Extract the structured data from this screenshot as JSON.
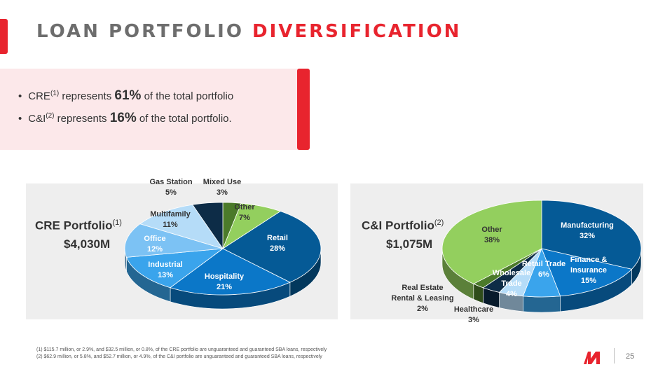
{
  "title": {
    "part1": "LOAN PORTFOLIO ",
    "part2": "DIVERSIFICATION"
  },
  "bullets": [
    {
      "a": "CRE",
      "sup": "(1)",
      "b": " represents ",
      "pct": "61%",
      "c": " of the total portfolio"
    },
    {
      "a": "C&I",
      "sup": "(2)",
      "b": " represents ",
      "pct": "16%",
      "c": " of the total portfolio."
    }
  ],
  "chart_data": [
    {
      "type": "pie",
      "title": "CRE Portfolio",
      "title_sup": "(1)",
      "total": "$4,030M",
      "slices": [
        {
          "name": "Mixed Use",
          "value": 3,
          "color": "#4b7a2a"
        },
        {
          "name": "Other",
          "value": 7,
          "color": "#93cf5e"
        },
        {
          "name": "Retail",
          "value": 28,
          "color": "#055a96"
        },
        {
          "name": "Hospitality",
          "value": 21,
          "color": "#0b77c8"
        },
        {
          "name": "Industrial",
          "value": 13,
          "color": "#3aa4ec"
        },
        {
          "name": "Office",
          "value": 12,
          "color": "#7cc2f4"
        },
        {
          "name": "Multifamily",
          "value": 11,
          "color": "#b5dcf8"
        },
        {
          "name": "Gas Station",
          "value": 5,
          "color": "#0d2c47"
        }
      ]
    },
    {
      "type": "pie",
      "title": "C&I Portfolio",
      "title_sup": "(2)",
      "total": "$1,075M",
      "slices": [
        {
          "name": "Manufacturing",
          "value": 32,
          "color": "#055a96"
        },
        {
          "name": "Finance & Insurance",
          "value": 15,
          "color": "#0b77c8"
        },
        {
          "name": "Retail Trade",
          "value": 6,
          "color": "#3aa4ec"
        },
        {
          "name": "Wholesale Trade",
          "value": 4,
          "color": "#b5dcf8"
        },
        {
          "name": "Healthcare",
          "value": 3,
          "color": "#0d2c47"
        },
        {
          "name": "Real Estate Rental & Leasing",
          "value": 2,
          "color": "#4b7a2a"
        },
        {
          "name": "Other",
          "value": 38,
          "color": "#93cf5e"
        }
      ]
    }
  ],
  "footnotes": [
    "(1)    $115.7 million, or 2.9%, and $32.5 million, or 0.8%, of the CRE portfolio are unguaranteed and guaranteed SBA loans, respectively",
    "(2)    $62.9 million, or 5.8%, and $52.7 million, or 4.9%, of the C&I portfolio are unguaranteed and guaranteed SBA loans, respectively"
  ],
  "page_number": "25"
}
